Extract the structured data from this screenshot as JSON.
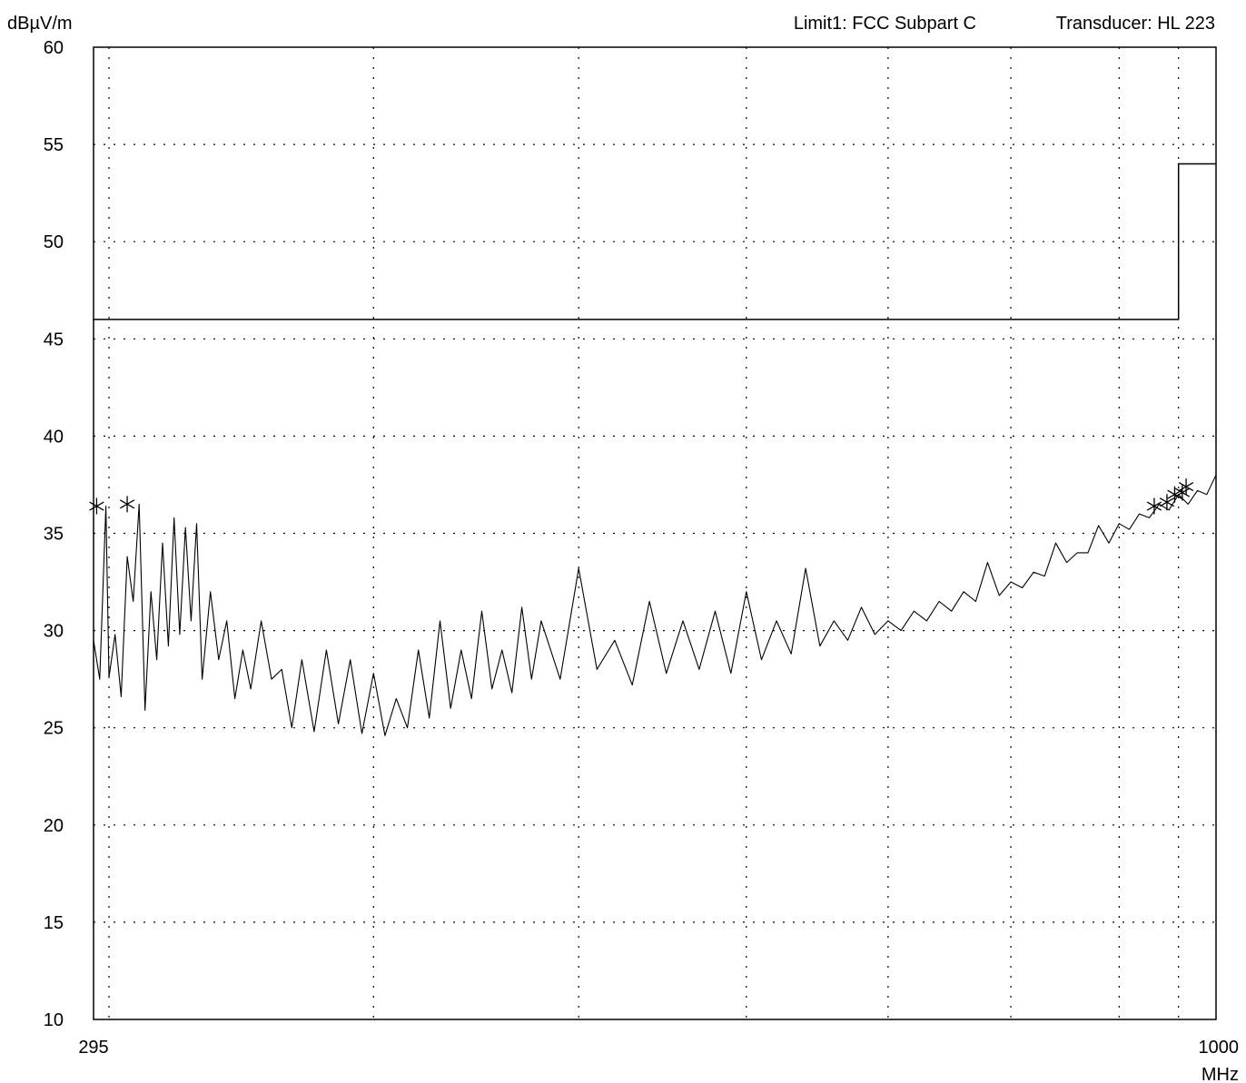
{
  "chart_data": {
    "type": "line",
    "title": "",
    "ylabel": "dBµV/m",
    "xunit": "MHz",
    "header": {
      "limit": "Limit1: FCC Subpart C",
      "transducer": "Transducer: HL 223"
    },
    "xlim": [
      295,
      1000
    ],
    "ylim": [
      10,
      60
    ],
    "x_scale": "log",
    "x_tick_labels": [
      "295",
      "1000"
    ],
    "y_ticks": [
      10,
      15,
      20,
      25,
      30,
      35,
      40,
      45,
      50,
      55,
      60
    ],
    "x_gridlines": [
      300,
      400,
      500,
      600,
      700,
      800,
      900,
      960
    ],
    "grid": true,
    "limit_line": {
      "name": "Limit1",
      "x": [
        295,
        960,
        960,
        1000
      ],
      "y": [
        46.0,
        46.0,
        54.0,
        54.0
      ]
    },
    "measurement": {
      "x": [
        295,
        297,
        299,
        300,
        302,
        304,
        306,
        308,
        310,
        312,
        314,
        316,
        318,
        320,
        322,
        324,
        326,
        328,
        330,
        332,
        335,
        338,
        341,
        344,
        347,
        350,
        354,
        358,
        362,
        366,
        370,
        375,
        380,
        385,
        390,
        395,
        400,
        405,
        410,
        415,
        420,
        425,
        430,
        435,
        440,
        445,
        450,
        455,
        460,
        465,
        470,
        475,
        480,
        490,
        500,
        510,
        520,
        530,
        540,
        550,
        560,
        570,
        580,
        590,
        600,
        610,
        620,
        630,
        640,
        650,
        660,
        670,
        680,
        690,
        700,
        710,
        720,
        730,
        740,
        750,
        760,
        770,
        780,
        790,
        800,
        810,
        820,
        830,
        840,
        850,
        860,
        870,
        880,
        890,
        900,
        910,
        920,
        930,
        940,
        950,
        960,
        970,
        980,
        990,
        1000
      ],
      "y": [
        29.5,
        27.5,
        36.4,
        27.6,
        29.8,
        26.6,
        33.8,
        31.5,
        36.5,
        25.9,
        32.0,
        28.5,
        34.5,
        29.2,
        35.8,
        29.8,
        35.3,
        30.5,
        35.5,
        27.5,
        32.0,
        28.5,
        30.5,
        26.5,
        29.0,
        27.0,
        30.5,
        27.5,
        28.0,
        25.0,
        28.5,
        24.8,
        29.0,
        25.2,
        28.5,
        24.7,
        27.8,
        24.6,
        26.5,
        25.0,
        29.0,
        25.5,
        30.5,
        26.0,
        29.0,
        26.5,
        31.0,
        27.0,
        29.0,
        26.8,
        31.2,
        27.5,
        30.5,
        27.5,
        33.2,
        28.0,
        29.5,
        27.2,
        31.5,
        27.8,
        30.5,
        28.0,
        31.0,
        27.8,
        32.0,
        28.5,
        30.5,
        28.8,
        33.2,
        29.2,
        30.5,
        29.5,
        31.2,
        29.8,
        30.5,
        30.0,
        31.0,
        30.5,
        31.5,
        31.0,
        32.0,
        31.5,
        33.5,
        31.8,
        32.5,
        32.2,
        33.0,
        32.8,
        34.5,
        33.5,
        34.0,
        34.0,
        35.4,
        34.5,
        35.5,
        35.2,
        36.0,
        35.8,
        36.5,
        36.2,
        37.0,
        36.5,
        37.2,
        37.0,
        38.0
      ],
      "peak_markers": {
        "x": [
          296,
          306,
          935,
          948,
          956,
          964,
          968
        ],
        "y": [
          36.4,
          36.5,
          36.4,
          36.6,
          37.0,
          37.1,
          37.4
        ]
      }
    }
  }
}
